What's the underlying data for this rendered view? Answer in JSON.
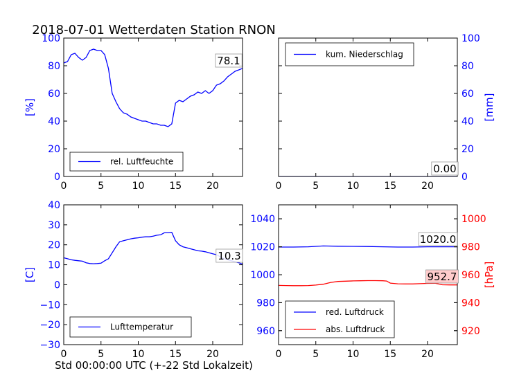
{
  "title": "2018-07-01 Wetterdaten Station RNON",
  "xlabel": "Std 00:00:00 UTC (+-22 Std Lokalzeit)",
  "colors": {
    "blue": "#0000ff",
    "red": "#ff0000",
    "axis": "#000000",
    "ann_fill": "#ffcccc"
  },
  "chart_data": [
    {
      "type": "line",
      "ylabel": "[%]",
      "xlim": [
        0,
        24
      ],
      "ylim": [
        0,
        100
      ],
      "xticks": [
        0,
        5,
        10,
        15,
        20
      ],
      "yticks": [
        0,
        20,
        40,
        60,
        80,
        100
      ],
      "legend": "lower-left",
      "annotation": "78.1",
      "series": [
        {
          "name": "rel. Luftfeuchte",
          "color": "#0000ff",
          "x": [
            0,
            0.5,
            1,
            1.5,
            2,
            2.5,
            3,
            3.5,
            4,
            4.5,
            5,
            5.5,
            6,
            6.5,
            7,
            7.5,
            8,
            8.5,
            9,
            9.5,
            10,
            10.5,
            11,
            11.5,
            12,
            12.5,
            13,
            13.5,
            14,
            14.5,
            15,
            15.5,
            16,
            16.5,
            17,
            17.5,
            18,
            18.5,
            19,
            19.5,
            20,
            20.5,
            21,
            21.5,
            22,
            22.5,
            23,
            23.5,
            24
          ],
          "y": [
            82,
            83,
            88,
            89,
            86,
            84,
            86,
            91,
            92,
            91,
            91,
            88,
            78,
            60,
            54,
            49,
            46,
            45,
            43,
            42,
            41,
            40,
            40,
            39,
            38,
            38,
            37,
            37,
            36,
            38,
            53,
            55,
            54,
            56,
            58,
            59,
            61,
            60,
            62,
            60,
            62,
            66,
            67,
            69,
            72,
            74,
            76,
            77,
            78.1
          ]
        }
      ]
    },
    {
      "type": "line",
      "ylabel": "[mm]",
      "xlim": [
        0,
        24
      ],
      "ylim": [
        0,
        100
      ],
      "xticks": [
        0,
        5,
        10,
        15,
        20
      ],
      "yticks": [
        0,
        20,
        40,
        60,
        80,
        100
      ],
      "legend": "upper-left",
      "annotation": "0.00",
      "series": [
        {
          "name": "kum. Niederschlag",
          "color": "#0000ff",
          "x": [
            0,
            24
          ],
          "y": [
            0,
            0
          ]
        }
      ]
    },
    {
      "type": "line",
      "ylabel": "[C]",
      "xlim": [
        0,
        24
      ],
      "ylim": [
        -30,
        40
      ],
      "xticks": [
        0,
        5,
        10,
        15,
        20
      ],
      "yticks": [
        -30,
        -20,
        -10,
        0,
        10,
        20,
        30,
        40
      ],
      "legend": "lower-left",
      "annotation": "10.3",
      "series": [
        {
          "name": "Lufttemperatur",
          "color": "#0000ff",
          "x": [
            0,
            0.5,
            1,
            1.5,
            2,
            2.5,
            3,
            3.5,
            4,
            4.5,
            5,
            5.5,
            6,
            6.5,
            7,
            7.5,
            8,
            8.5,
            9,
            9.5,
            10,
            10.5,
            11,
            11.5,
            12,
            12.5,
            13,
            13.5,
            14,
            14.5,
            15,
            15.5,
            16,
            16.5,
            17,
            17.5,
            18,
            18.5,
            19,
            19.5,
            20,
            20.5,
            21,
            21.5,
            22,
            22.5,
            23,
            23.5,
            24
          ],
          "y": [
            13.5,
            13,
            12.5,
            12.2,
            12,
            11.8,
            11,
            10.6,
            10.5,
            10.6,
            10.8,
            12,
            13,
            16,
            19,
            21.5,
            22,
            22.5,
            23,
            23.3,
            23.5,
            23.8,
            24,
            24,
            24.3,
            24.8,
            25,
            26,
            26,
            26.2,
            22,
            20,
            19,
            18.5,
            18,
            17.5,
            17,
            16.8,
            16.5,
            16,
            15.5,
            15,
            14,
            13,
            12.5,
            12,
            11.5,
            11,
            10.3
          ]
        }
      ]
    },
    {
      "type": "line",
      "ylabel": "[hPa]",
      "xlim": [
        0,
        24
      ],
      "ylim": [
        950,
        1050
      ],
      "y2lim": [
        910,
        1010
      ],
      "xticks": [
        0,
        5,
        10,
        15,
        20
      ],
      "yticks": [
        960,
        980,
        1000,
        1020,
        1040
      ],
      "y2ticks": [
        920,
        940,
        960,
        980,
        1000
      ],
      "legend": "lower-left",
      "annotations": [
        "1020.0",
        "952.7"
      ],
      "series": [
        {
          "name": "red. Luftdruck",
          "color": "#0000ff",
          "axis": "left",
          "x": [
            0,
            2,
            4,
            6,
            8,
            10,
            12,
            14,
            16,
            18,
            20,
            22,
            24
          ],
          "y": [
            1019.8,
            1019.8,
            1020.0,
            1020.6,
            1020.4,
            1020.3,
            1020.2,
            1020.0,
            1019.8,
            1019.8,
            1020.0,
            1020.0,
            1020.0
          ]
        },
        {
          "name": "abs. Luftdruck",
          "color": "#ff0000",
          "axis": "right",
          "x": [
            0,
            1,
            2,
            3,
            4,
            5,
            6,
            7,
            8,
            9,
            10,
            11,
            12,
            13,
            14,
            14.5,
            15,
            16,
            17,
            18,
            19,
            20,
            21,
            22,
            23,
            24
          ],
          "y": [
            952.4,
            952.3,
            952.2,
            952.2,
            952.3,
            952.6,
            953.2,
            954.5,
            955.2,
            955.4,
            955.6,
            955.7,
            955.8,
            955.8,
            955.7,
            955.5,
            954.0,
            953.5,
            953.4,
            953.4,
            953.6,
            953.8,
            953.9,
            952.8,
            952.7,
            952.7
          ]
        }
      ]
    }
  ]
}
